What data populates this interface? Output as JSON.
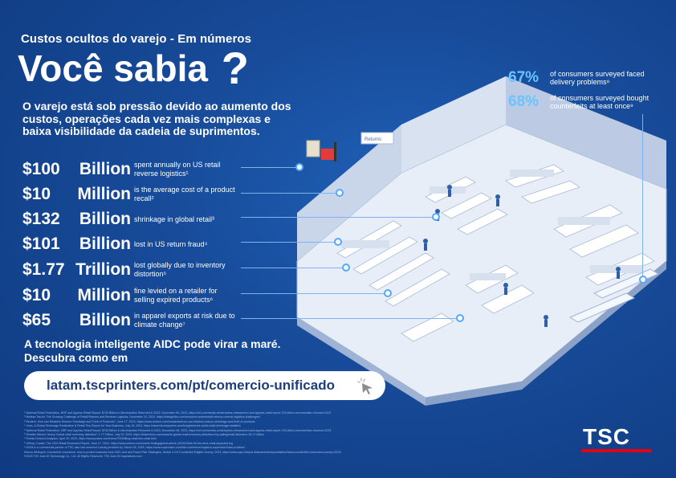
{
  "header": {
    "subtitle": "Custos ocultos do varejo - Em números",
    "title": "Você sabia",
    "title_mark": "?"
  },
  "intro": "O varejo está sob pressão devido ao aumento dos custos, operações cada vez mais complexas e baixa visibilidade da cadeia de suprimentos.",
  "stats": [
    {
      "value": "$100",
      "unit": "Billion",
      "desc": "spent annually on US retail reverse logistics¹"
    },
    {
      "value": "$10",
      "unit": "Million",
      "desc": "is the average cost of a product recall²"
    },
    {
      "value": "$132",
      "unit": "Billion",
      "desc": "shrinkage in global retail³"
    },
    {
      "value": "$101",
      "unit": "Billion",
      "desc": "lost in US return fraud⁴"
    },
    {
      "value": "$1.77",
      "unit": "Trillion",
      "desc": "lost globally due to inventory distortion⁵"
    },
    {
      "value": "$10",
      "unit": "Million",
      "desc": "fine levied on a retailer for selling expired products⁶"
    },
    {
      "value": "$65",
      "unit": "Billion",
      "desc": "in apparel exports at risk due to climate change⁷"
    }
  ],
  "right_stats": [
    {
      "value": "67%",
      "desc": "of consumers surveyed faced delivery problems⁸"
    },
    {
      "value": "68%",
      "desc": "of consumers surveyed bought counterfeits at least once⁹"
    }
  ],
  "cta": "A tecnologia inteligente AIDC pode virar a maré. Descubra como em",
  "url": "latam.tscprinters.com/pt/comercio-unificado",
  "store_sign": "Returns",
  "footnotes": [
    "¹ National Retail Federation, NRF and Appriss Retail Report: $743 Billion in Merchandise Returned in 2023, December 06, 2023, https://nrf.com/media-center/press-releases/nrf-and-appriss-retail-report-743-billion-merchandise-returned-2023",
    "² Melissa Tacchi, The Growing Challenge of Retail Returns and Reverse Logistics, December 19, 2024, https://intlogistics.com/resource-center/retail-returns-reverse-logistics-challenges/",
    "³ Reuters, How can Retailers Reduce Shrinkage and Theft of Products?, June 17, 2024, https://www.reuters.com/industries/how-can-retailers-reduce-shrinkage-and-theft-of-products",
    "⁴ Vova, A Global Shrinkage Realization & Retail Tiny Report for Year Business, July 19, 2024, https://www.hkcompanies.com/insights/vova-world-retail-shrinkage-statistics",
    "⁵ National Retail Federation, NRF and Appriss Retail Report: $743 Billion in Merchandise Returned in 2023, December 06, 2023, https://nrf.com/media-center/press-releases/nrf-and-appriss-retail-report-743-billion-merchandise-returned-2023",
    "⁶ Retailer Wiesel, Heavy Global retail inventory distortion* 1.77 Trillion, July 23, 2023, https://ihlservices.com/news/is-global-retail-inventory-distortion-tiny-tailing/retail-distortion-18-17-trillion",
    "⁷ Florida Desired Analyses, April 29, 2023, https://www.justice.com/news/7000/filing-retail-fine-retail.html",
    "⁸ Jeffrey Coulter, The 2024 Retail Endorsed Report, June 17, 2024, https://www.cetera.com/mobile-finding/global-article-10/2024/the-fill-the-wind-retail-impacted-ing",
    "⁹ AICM is a commercial partner of TSC also has received a study provided by, March 26, 2025, https://www.supervisex.com/fair-commerce/logistics-supervisor/hack-problem/",
    "Sidney Whitspell, Counterfeit commerce: how to protect business from 2021 and and Fraud Rise Strategies, Global 4.1% Counterfeit Eligible Survey, 2023, https://www.psp.interpol.alliance/industry/statistics/fraud-counterfeit-consumers-survey-2023/",
    "©2025 TSC Auto ID Technology Co., Ltd. All Rights Reserved. TSC Auto ID Inspirations.com"
  ],
  "logo": "TSC",
  "colors": {
    "background": "#174a98",
    "accent_blue": "#6cc3ff",
    "logo_red": "#e60012",
    "url_text": "#1b3f7a"
  }
}
